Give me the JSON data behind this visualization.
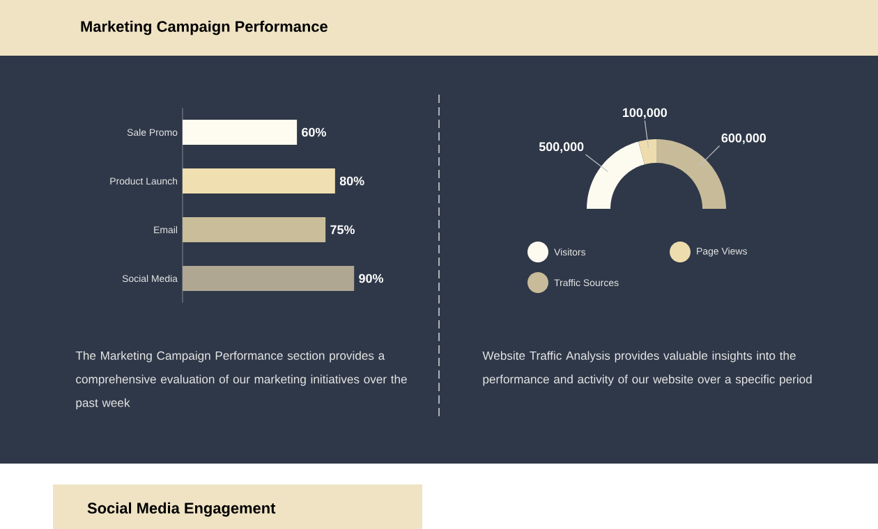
{
  "chart_data": [
    {
      "type": "bar",
      "orientation": "horizontal",
      "title": "Marketing Campaign Performance",
      "categories": [
        "Sale Promo",
        "Product Launch",
        "Email",
        "Social Media"
      ],
      "values": [
        60,
        80,
        75,
        90
      ],
      "value_labels": [
        "60%",
        "80%",
        "75%",
        "90%"
      ],
      "colors": [
        "#fefbf0",
        "#f0dfb0",
        "#c9bd9a",
        "#b0a793"
      ],
      "annotations": [
        "The Marketing Campaign Performance section provides a comprehensive evaluation of our marketing initiatives over the past week"
      ]
    },
    {
      "type": "donut",
      "categories": [
        "Visitors",
        "Page Views",
        "Traffic Sources"
      ],
      "values": [
        500000,
        100000,
        600000
      ],
      "value_labels": [
        "500,000",
        "100,000",
        "600,000"
      ],
      "colors": [
        "#fdfaf0",
        "#eddcae",
        "#c8bb9a"
      ],
      "legend": "bottom",
      "annotations": [
        "Website Traffic Analysis provides valuable insights into the performance and activity of our website over a specific period"
      ]
    },
    {
      "type": "other",
      "title": "Social Media Engagement"
    }
  ]
}
